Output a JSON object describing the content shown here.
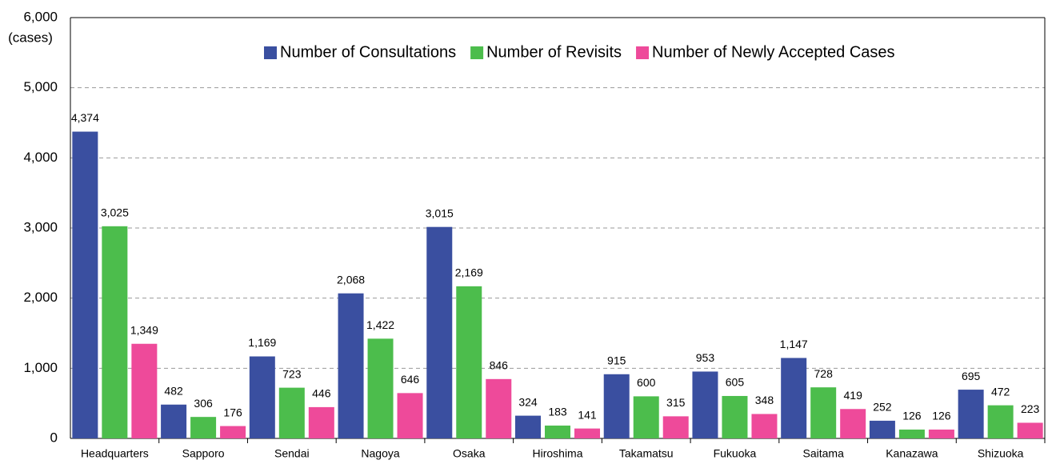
{
  "chart_data": {
    "type": "bar",
    "y_axis_label": "(cases)",
    "categories": [
      "Headquarters",
      "Sapporo",
      "Sendai",
      "Nagoya",
      "Osaka",
      "Hiroshima",
      "Takamatsu",
      "Fukuoka",
      "Saitama",
      "Kanazawa",
      "Shizuoka"
    ],
    "series": [
      {
        "name": "Number of Consultations",
        "color": "#3a4fa0",
        "values": [
          4374,
          482,
          1169,
          2068,
          3015,
          324,
          915,
          953,
          1147,
          252,
          695
        ],
        "value_labels": [
          "4,374",
          "482",
          "1,169",
          "2,068",
          "3,015",
          "324",
          "915",
          "953",
          "1,147",
          "252",
          "695"
        ]
      },
      {
        "name": "Number of Revisits",
        "color": "#4cbd4c",
        "values": [
          3025,
          306,
          723,
          1422,
          2169,
          183,
          600,
          605,
          728,
          126,
          472
        ],
        "value_labels": [
          "3,025",
          "306",
          "723",
          "1,422",
          "2,169",
          "183",
          "600",
          "605",
          "728",
          "126",
          "472"
        ]
      },
      {
        "name": "Number of Newly Accepted Cases",
        "color": "#ee4a9a",
        "values": [
          1349,
          176,
          446,
          646,
          846,
          141,
          315,
          348,
          419,
          126,
          223
        ],
        "value_labels": [
          "1,349",
          "176",
          "446",
          "646",
          "846",
          "141",
          "315",
          "348",
          "419",
          "126",
          "223"
        ]
      }
    ],
    "ylim": [
      0,
      6000
    ],
    "yticks": [
      0,
      {
        "value": 1000,
        "label": "1,000"
      },
      {
        "value": 2000,
        "label": "2,000"
      },
      {
        "value": 3000,
        "label": "3,000"
      },
      {
        "value": 4000,
        "label": "4,000"
      },
      {
        "value": 5000,
        "label": "5,000"
      },
      {
        "value": 6000,
        "label": "6,000"
      }
    ],
    "grid": true,
    "legend": "top-right"
  }
}
